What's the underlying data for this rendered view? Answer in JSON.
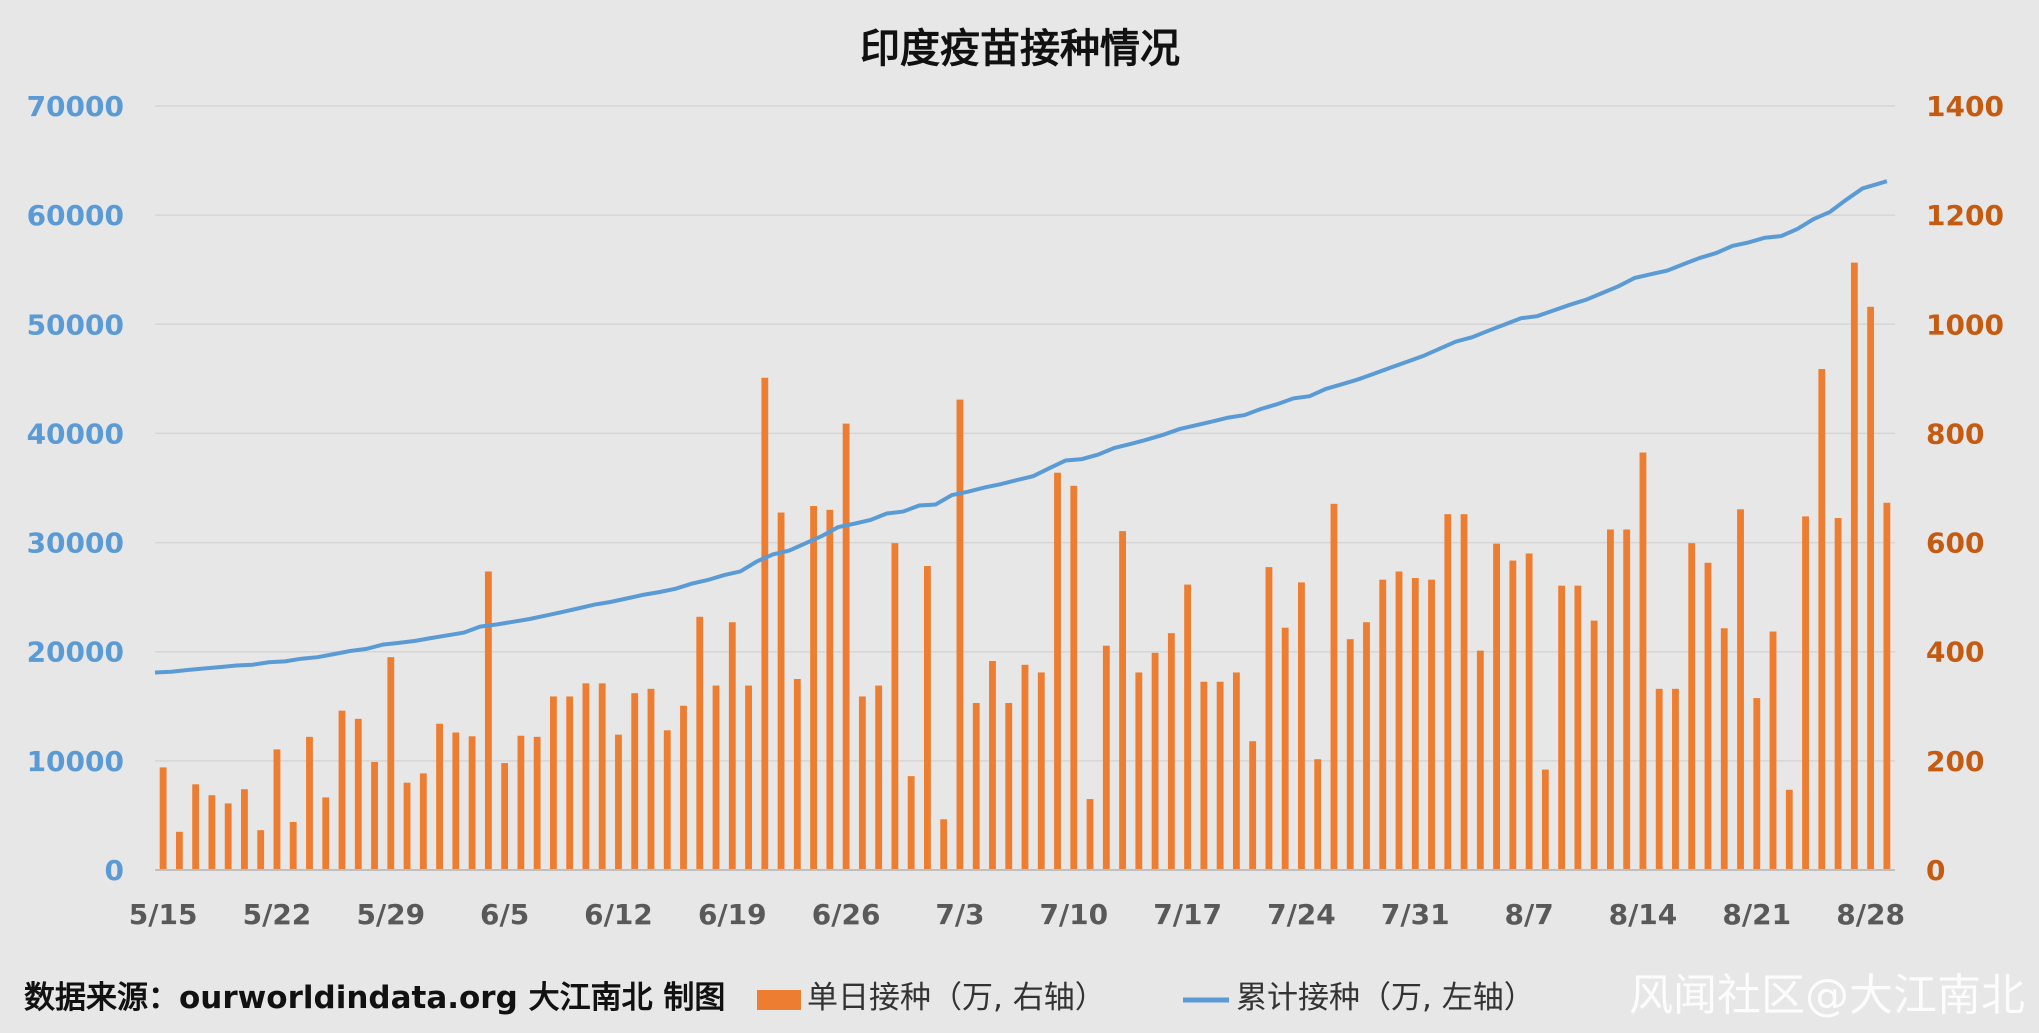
{
  "chart_data": {
    "type": "bar",
    "title": "印度疫苗接种情况",
    "x_tick_labels": [
      "5/15",
      "5/22",
      "5/29",
      "6/5",
      "6/12",
      "6/19",
      "6/26",
      "7/3",
      "7/10",
      "7/17",
      "7/24",
      "7/31",
      "8/7",
      "8/14",
      "8/21",
      "8/28"
    ],
    "left_axis": {
      "ticks": [
        "0",
        "10000",
        "20000",
        "30000",
        "40000",
        "50000",
        "60000",
        "70000"
      ],
      "ylim": [
        0,
        70000
      ],
      "color": "#5b9bd5"
    },
    "right_axis": {
      "ticks": [
        "0",
        "200",
        "400",
        "600",
        "800",
        "1000",
        "1200",
        "1400"
      ],
      "ylim": [
        0,
        1400
      ],
      "color": "#c55a11"
    },
    "grid": true,
    "legend_position": "bottom",
    "series": [
      {
        "name": "单日接种（万, 右轴）",
        "type": "bar",
        "axis": "right",
        "color": "#ed7d31",
        "values": [
          188,
          70,
          157,
          137,
          122,
          148,
          73,
          221,
          88,
          244,
          133,
          292,
          277,
          198,
          390,
          160,
          177,
          268,
          252,
          245,
          547,
          196,
          246,
          244,
          318,
          318,
          342,
          342,
          248,
          324,
          332,
          256,
          301,
          464,
          338,
          454,
          338,
          902,
          655,
          350,
          667,
          660,
          818,
          318,
          338,
          599,
          172,
          557,
          93,
          862,
          306,
          383,
          306,
          376,
          362,
          728,
          704,
          130,
          411,
          621,
          362,
          398,
          434,
          523,
          345,
          345,
          362,
          236,
          555,
          444,
          527,
          203,
          671,
          423,
          454,
          532,
          547,
          535,
          532,
          652,
          652,
          402,
          598,
          567,
          580,
          184,
          521,
          521,
          457,
          624,
          624,
          765,
          332,
          332,
          599,
          563,
          443,
          661,
          315,
          437,
          147,
          648,
          918,
          645,
          1113,
          1032,
          673
        ],
        "x_start": "5/15"
      },
      {
        "name": "累计接种（万, 左轴）",
        "type": "line",
        "axis": "left",
        "color": "#5b9bd5",
        "start": 18100,
        "daily_increment_source": "单日接种",
        "end": 63300
      }
    ]
  },
  "footer": {
    "source_label": "数据来源：ourworldindata.org 大江南北 制图"
  },
  "legend": {
    "bar_label": "单日接种（万, 右轴）",
    "line_label": "累计接种（万, 左轴）"
  },
  "watermark": "风闻社区@大江南北"
}
